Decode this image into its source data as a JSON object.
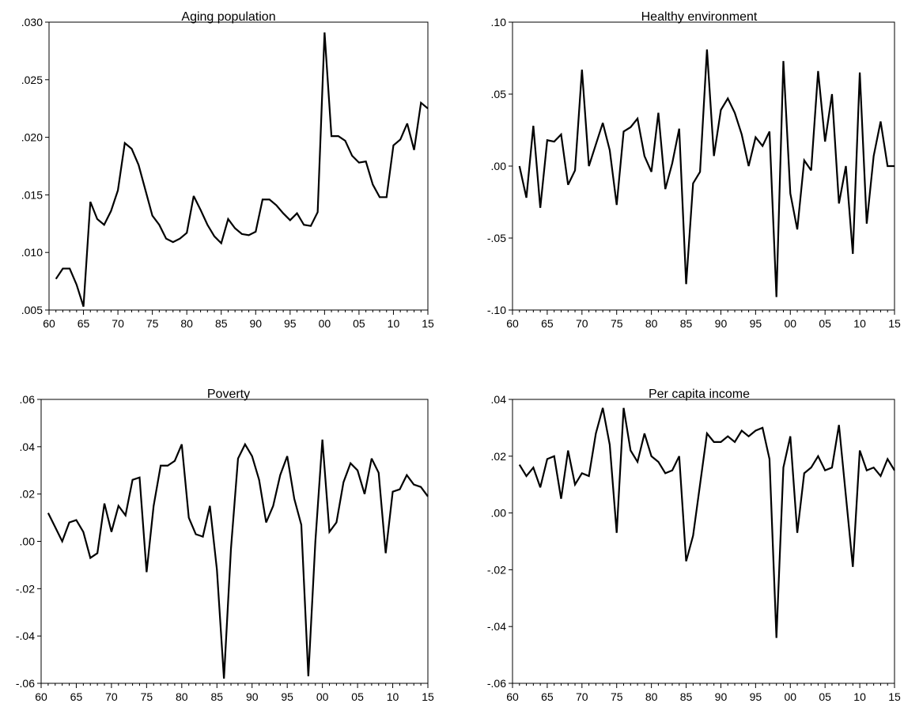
{
  "chart_data": [
    {
      "type": "line",
      "title": "Aging population",
      "xlabel": "",
      "ylabel": "",
      "x_ticks": [
        "60",
        "65",
        "70",
        "75",
        "80",
        "85",
        "90",
        "95",
        "00",
        "05",
        "10",
        "15"
      ],
      "y_ticks": [
        ".005",
        ".010",
        ".015",
        ".020",
        ".025",
        ".030"
      ],
      "xlim": [
        1960,
        2015
      ],
      "ylim": [
        0.005,
        0.03
      ],
      "grid": false,
      "x": [
        1961,
        1962,
        1963,
        1964,
        1965,
        1966,
        1967,
        1968,
        1969,
        1970,
        1971,
        1972,
        1973,
        1974,
        1975,
        1976,
        1977,
        1978,
        1979,
        1980,
        1981,
        1982,
        1983,
        1984,
        1985,
        1986,
        1987,
        1988,
        1989,
        1990,
        1991,
        1992,
        1993,
        1994,
        1995,
        1996,
        1997,
        1998,
        1999,
        2000,
        2001,
        2002,
        2003,
        2004,
        2005,
        2006,
        2007,
        2008,
        2009,
        2010,
        2011,
        2012,
        2013,
        2014,
        2015
      ],
      "series": [
        {
          "values": [
            0.0077,
            0.0086,
            0.0086,
            0.0072,
            0.0053,
            0.0144,
            0.0129,
            0.0124,
            0.0136,
            0.0154,
            0.0195,
            0.019,
            0.0176,
            0.0154,
            0.0132,
            0.0124,
            0.0112,
            0.0109,
            0.0112,
            0.0117,
            0.0149,
            0.0137,
            0.0124,
            0.0114,
            0.0108,
            0.0129,
            0.0121,
            0.0116,
            0.0115,
            0.0118,
            0.0146,
            0.0146,
            0.0141,
            0.0134,
            0.0128,
            0.0134,
            0.0124,
            0.0123,
            0.0135,
            0.0291,
            0.0201,
            0.0201,
            0.0197,
            0.0184,
            0.0178,
            0.0179,
            0.0159,
            0.0148,
            0.0148,
            0.0193,
            0.0198,
            0.0212,
            0.0189,
            0.023,
            0.0225
          ]
        }
      ]
    },
    {
      "type": "line",
      "title": "Healthy environment",
      "xlabel": "",
      "ylabel": "",
      "x_ticks": [
        "60",
        "65",
        "70",
        "75",
        "80",
        "85",
        "90",
        "95",
        "00",
        "05",
        "10",
        "15"
      ],
      "y_ticks": [
        "-.10",
        "-.05",
        ".00",
        ".05",
        ".10"
      ],
      "xlim": [
        1960,
        2015
      ],
      "ylim": [
        -0.1,
        0.1
      ],
      "grid": false,
      "x": [
        1961,
        1962,
        1963,
        1964,
        1965,
        1966,
        1967,
        1968,
        1969,
        1970,
        1971,
        1972,
        1973,
        1974,
        1975,
        1976,
        1977,
        1978,
        1979,
        1980,
        1981,
        1982,
        1983,
        1984,
        1985,
        1986,
        1987,
        1988,
        1989,
        1990,
        1991,
        1992,
        1993,
        1994,
        1995,
        1996,
        1997,
        1998,
        1999,
        2000,
        2001,
        2002,
        2003,
        2004,
        2005,
        2006,
        2007,
        2008,
        2009,
        2010,
        2011,
        2012,
        2013,
        2014,
        2015
      ],
      "series": [
        {
          "values": [
            0.0,
            -0.022,
            0.028,
            -0.029,
            0.018,
            0.017,
            0.022,
            -0.013,
            -0.003,
            0.067,
            0.0,
            0.015,
            0.03,
            0.011,
            -0.027,
            0.024,
            0.027,
            0.033,
            0.007,
            -0.004,
            0.037,
            -0.016,
            0.002,
            0.026,
            -0.082,
            -0.012,
            -0.004,
            0.081,
            0.007,
            0.039,
            0.047,
            0.037,
            0.022,
            0.0,
            0.02,
            0.014,
            0.024,
            -0.091,
            0.073,
            -0.019,
            -0.044,
            0.004,
            -0.003,
            0.066,
            0.017,
            0.05,
            -0.026,
            0.0,
            -0.061,
            0.065,
            -0.04,
            0.007,
            0.031,
            0.0,
            0.0
          ]
        }
      ]
    },
    {
      "type": "line",
      "title": "Poverty",
      "xlabel": "",
      "ylabel": "",
      "x_ticks": [
        "60",
        "65",
        "70",
        "75",
        "80",
        "85",
        "90",
        "95",
        "00",
        "05",
        "10",
        "15"
      ],
      "y_ticks": [
        "-.06",
        "-.04",
        "-.02",
        ".00",
        ".02",
        ".04",
        ".06"
      ],
      "xlim": [
        1960,
        2015
      ],
      "ylim": [
        -0.06,
        0.06
      ],
      "grid": false,
      "x": [
        1961,
        1962,
        1963,
        1964,
        1965,
        1966,
        1967,
        1968,
        1969,
        1970,
        1971,
        1972,
        1973,
        1974,
        1975,
        1976,
        1977,
        1978,
        1979,
        1980,
        1981,
        1982,
        1983,
        1984,
        1985,
        1986,
        1987,
        1988,
        1989,
        1990,
        1991,
        1992,
        1993,
        1994,
        1995,
        1996,
        1997,
        1998,
        1999,
        2000,
        2001,
        2002,
        2003,
        2004,
        2005,
        2006,
        2007,
        2008,
        2009,
        2010,
        2011,
        2012,
        2013,
        2014,
        2015
      ],
      "series": [
        {
          "values": [
            0.012,
            0.006,
            0.0,
            0.008,
            0.009,
            0.004,
            -0.007,
            -0.005,
            0.016,
            0.004,
            0.015,
            0.011,
            0.026,
            0.027,
            -0.013,
            0.015,
            0.032,
            0.032,
            0.034,
            0.041,
            0.01,
            0.003,
            0.002,
            0.015,
            -0.012,
            -0.058,
            -0.003,
            0.035,
            0.041,
            0.036,
            0.026,
            0.008,
            0.015,
            0.028,
            0.036,
            0.018,
            0.007,
            -0.057,
            0.0,
            0.043,
            0.004,
            0.008,
            0.025,
            0.033,
            0.03,
            0.02,
            0.035,
            0.029,
            -0.005,
            0.021,
            0.022,
            0.028,
            0.024,
            0.023,
            0.019
          ]
        }
      ]
    },
    {
      "type": "line",
      "title": "Per capita income",
      "xlabel": "",
      "ylabel": "",
      "x_ticks": [
        "60",
        "65",
        "70",
        "75",
        "80",
        "85",
        "90",
        "95",
        "00",
        "05",
        "10",
        "15"
      ],
      "y_ticks": [
        "-.06",
        "-.04",
        "-.02",
        ".00",
        ".02",
        ".04"
      ],
      "xlim": [
        1960,
        2015
      ],
      "ylim": [
        -0.06,
        0.04
      ],
      "grid": false,
      "x": [
        1961,
        1962,
        1963,
        1964,
        1965,
        1966,
        1967,
        1968,
        1969,
        1970,
        1971,
        1972,
        1973,
        1974,
        1975,
        1976,
        1977,
        1978,
        1979,
        1980,
        1981,
        1982,
        1983,
        1984,
        1985,
        1986,
        1987,
        1988,
        1989,
        1990,
        1991,
        1992,
        1993,
        1994,
        1995,
        1996,
        1997,
        1998,
        1999,
        2000,
        2001,
        2002,
        2003,
        2004,
        2005,
        2006,
        2007,
        2008,
        2009,
        2010,
        2011,
        2012,
        2013,
        2014,
        2015
      ],
      "series": [
        {
          "values": [
            0.017,
            0.013,
            0.016,
            0.009,
            0.019,
            0.02,
            0.005,
            0.022,
            0.01,
            0.014,
            0.013,
            0.028,
            0.037,
            0.024,
            -0.007,
            0.037,
            0.022,
            0.018,
            0.028,
            0.02,
            0.018,
            0.014,
            0.015,
            0.02,
            -0.017,
            -0.008,
            0.01,
            0.028,
            0.025,
            0.025,
            0.027,
            0.025,
            0.029,
            0.027,
            0.029,
            0.03,
            0.019,
            -0.044,
            0.016,
            0.027,
            -0.007,
            0.014,
            0.016,
            0.02,
            0.015,
            0.016,
            0.031,
            0.006,
            -0.019,
            0.022,
            0.015,
            0.016,
            0.013,
            0.019,
            0.015
          ]
        }
      ]
    }
  ]
}
